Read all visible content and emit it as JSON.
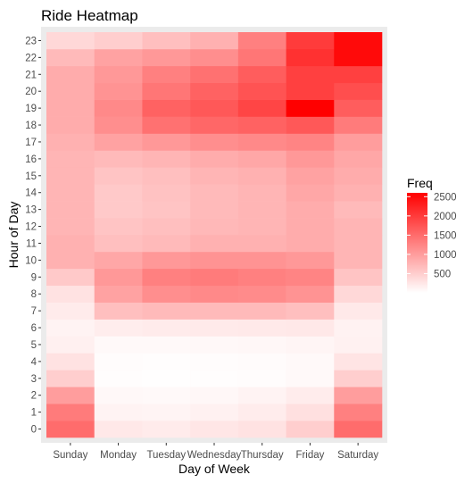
{
  "chart_data": {
    "type": "heatmap",
    "title": "Ride Heatmap",
    "xlabel": "Day of Week",
    "ylabel": "Hour of Day",
    "x_categories": [
      "Sunday",
      "Monday",
      "Tuesday",
      "Wednesday",
      "Thursday",
      "Friday",
      "Saturday"
    ],
    "y_categories": [
      "0",
      "1",
      "2",
      "3",
      "4",
      "5",
      "6",
      "7",
      "8",
      "9",
      "10",
      "11",
      "12",
      "13",
      "14",
      "15",
      "16",
      "17",
      "18",
      "19",
      "20",
      "21",
      "22",
      "23"
    ],
    "values": [
      [
        1500,
        230,
        200,
        260,
        300,
        500,
        1500
      ],
      [
        1350,
        120,
        110,
        140,
        190,
        320,
        1300
      ],
      [
        1000,
        70,
        60,
        80,
        120,
        190,
        1000
      ],
      [
        500,
        20,
        15,
        20,
        30,
        60,
        500
      ],
      [
        300,
        30,
        25,
        30,
        40,
        60,
        280
      ],
      [
        150,
        60,
        60,
        70,
        80,
        100,
        140
      ],
      [
        120,
        180,
        200,
        210,
        220,
        230,
        130
      ],
      [
        200,
        650,
        700,
        700,
        700,
        650,
        220
      ],
      [
        300,
        950,
        1150,
        1200,
        1180,
        1100,
        400
      ],
      [
        550,
        1050,
        1300,
        1350,
        1300,
        1250,
        600
      ],
      [
        800,
        900,
        1050,
        1100,
        1100,
        1050,
        750
      ],
      [
        800,
        650,
        700,
        800,
        800,
        850,
        750
      ],
      [
        750,
        600,
        650,
        720,
        750,
        850,
        750
      ],
      [
        750,
        550,
        600,
        700,
        750,
        850,
        700
      ],
      [
        750,
        550,
        620,
        700,
        750,
        900,
        800
      ],
      [
        750,
        600,
        650,
        750,
        800,
        950,
        850
      ],
      [
        750,
        700,
        750,
        850,
        900,
        1050,
        900
      ],
      [
        800,
        950,
        1050,
        1150,
        1200,
        1250,
        1000
      ],
      [
        850,
        1150,
        1450,
        1550,
        1600,
        1700,
        1350
      ],
      [
        850,
        1200,
        1600,
        1700,
        1900,
        2600,
        1650
      ],
      [
        850,
        1100,
        1400,
        1600,
        1750,
        1950,
        1800
      ],
      [
        850,
        1050,
        1300,
        1450,
        1650,
        1950,
        1950
      ],
      [
        700,
        950,
        1050,
        1150,
        1400,
        2100,
        2500
      ],
      [
        400,
        500,
        650,
        800,
        1300,
        2000,
        2500
      ]
    ],
    "color_scale": {
      "name": "Freq",
      "low": "#ffffff",
      "high": "#ff0000",
      "min": 0,
      "max": 2600,
      "ticks": [
        500,
        1000,
        1500,
        2000,
        2500
      ]
    },
    "grid": true,
    "legend_position": "right"
  }
}
